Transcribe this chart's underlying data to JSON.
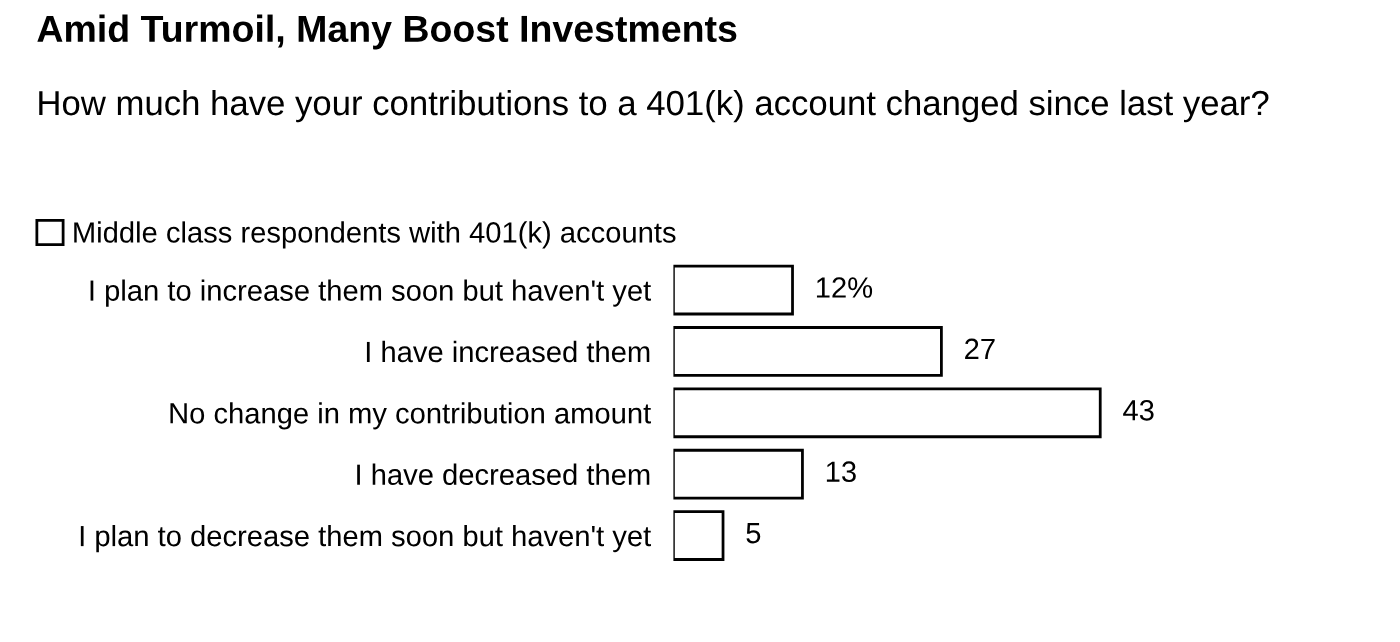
{
  "chart_data": {
    "type": "bar",
    "orientation": "horizontal",
    "title": "Amid Turmoil, Many Boost Investments",
    "subtitle": "How much have your contributions to a 401(k) account changed since last year?",
    "categories": [
      "I plan to increase them soon but haven't yet",
      "I have increased them",
      "No change in my contribution amount",
      "I have decreased them",
      "I plan to decrease them soon but haven't yet"
    ],
    "series": [
      {
        "name": "Middle class respondents with 401(k) accounts",
        "color": "#ffffff",
        "values": [
          12,
          27,
          43,
          13,
          5
        ],
        "value_labels": [
          "12%",
          "27",
          "43",
          "13",
          "5"
        ]
      }
    ],
    "legend": "top left"
  }
}
